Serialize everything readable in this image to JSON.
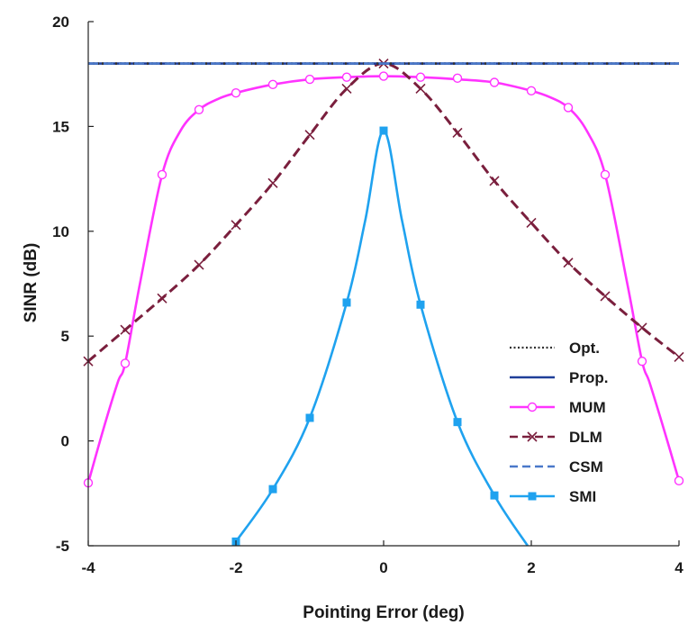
{
  "chart_data": {
    "type": "line",
    "title": "",
    "xlabel": "Pointing Error (deg)",
    "ylabel": "SINR (dB)",
    "xlim": [
      -4,
      4
    ],
    "ylim": [
      -5,
      20
    ],
    "xticks": [
      -4,
      -2,
      0,
      2,
      4
    ],
    "yticks": [
      -5,
      0,
      5,
      10,
      15,
      20
    ],
    "xtick_labels": [
      "-4",
      "-2",
      "0",
      "2",
      "4"
    ],
    "ytick_labels": [
      "-5",
      "0",
      "5",
      "10",
      "15",
      "20"
    ],
    "grid": false,
    "legend_position": "bottom-right",
    "series": [
      {
        "name": "Opt.",
        "color": "#333333",
        "style": "dotted",
        "marker": "none",
        "x": [
          -4,
          4
        ],
        "y": [
          18.0,
          18.0
        ]
      },
      {
        "name": "Prop.",
        "color": "#1f3f99",
        "style": "solid",
        "marker": "none",
        "x": [
          -4,
          4
        ],
        "y": [
          18.0,
          18.0
        ]
      },
      {
        "name": "MUM",
        "color": "#ff33ff",
        "style": "solid",
        "marker": "circle",
        "x": [
          -4,
          -3.8,
          -3.6,
          -3.5,
          -3.3,
          -3.0,
          -2.75,
          -2.5,
          -2.25,
          -2.0,
          -1.5,
          -1.0,
          -0.5,
          0,
          0.5,
          1.0,
          1.5,
          2.0,
          2.25,
          2.5,
          2.75,
          3.0,
          3.3,
          3.5,
          3.6,
          3.8,
          4
        ],
        "y": [
          -2.0,
          0.5,
          2.8,
          3.7,
          7.5,
          12.7,
          14.8,
          15.8,
          16.3,
          16.6,
          17.0,
          17.25,
          17.35,
          17.4,
          17.35,
          17.25,
          17.1,
          16.7,
          16.4,
          15.9,
          14.8,
          12.7,
          7.5,
          3.8,
          2.8,
          0.5,
          -1.9
        ],
        "marker_x": [
          -4,
          -3.5,
          -3,
          -2.5,
          -2,
          -1.5,
          -1,
          -0.5,
          0,
          0.5,
          1,
          1.5,
          2,
          2.5,
          3,
          3.5,
          4
        ],
        "marker_y": [
          -2.0,
          3.7,
          12.7,
          15.8,
          16.6,
          17.0,
          17.25,
          17.35,
          17.4,
          17.35,
          17.3,
          17.1,
          16.7,
          15.9,
          12.7,
          3.8,
          -1.9
        ]
      },
      {
        "name": "DLM",
        "color": "#7a1f3d",
        "style": "dashed",
        "marker": "x",
        "x": [
          -4,
          -3.5,
          -3,
          -2.5,
          -2,
          -1.5,
          -1,
          -0.5,
          0,
          0.5,
          1,
          1.5,
          2,
          2.5,
          3,
          3.5,
          4
        ],
        "y": [
          3.8,
          5.3,
          6.8,
          8.4,
          10.3,
          12.3,
          14.6,
          16.8,
          18.0,
          16.8,
          14.7,
          12.4,
          10.4,
          8.5,
          6.9,
          5.4,
          4.0
        ],
        "marker_x": [
          -4,
          -3.5,
          -3,
          -2.5,
          -2,
          -1.5,
          -1,
          -0.5,
          0,
          0.5,
          1,
          1.5,
          2,
          2.5,
          3,
          3.5,
          4
        ],
        "marker_y": [
          3.8,
          5.3,
          6.8,
          8.4,
          10.3,
          12.3,
          14.6,
          16.8,
          18.0,
          16.8,
          14.7,
          12.4,
          10.4,
          8.5,
          6.9,
          5.4,
          4.0
        ]
      },
      {
        "name": "CSM",
        "color": "#4a78c9",
        "style": "dashed",
        "marker": "none",
        "x": [
          -4,
          4
        ],
        "y": [
          18.0,
          18.0
        ]
      },
      {
        "name": "SMI",
        "color": "#1fa2ef",
        "style": "solid",
        "marker": "square",
        "x": [
          -2,
          -1.5,
          -1,
          -0.5,
          -0.25,
          0,
          0.25,
          0.5,
          1,
          1.5,
          1.95
        ],
        "y": [
          -4.8,
          -2.3,
          1.1,
          6.6,
          10.5,
          14.8,
          10.5,
          6.5,
          0.9,
          -2.6,
          -5.0
        ],
        "marker_x": [
          -2,
          -1.5,
          -1,
          -0.5,
          0,
          0.5,
          1,
          1.5
        ],
        "marker_y": [
          -4.8,
          -2.3,
          1.1,
          6.6,
          14.8,
          6.5,
          0.9,
          -2.6
        ]
      }
    ]
  }
}
